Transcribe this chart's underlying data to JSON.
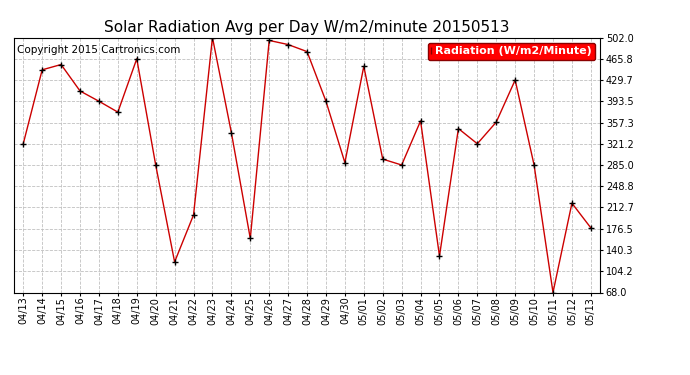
{
  "title": "Solar Radiation Avg per Day W/m2/minute 20150513",
  "copyright": "Copyright 2015 Cartronics.com",
  "legend_label": "Radiation (W/m2/Minute)",
  "dates": [
    "04/13",
    "04/14",
    "04/15",
    "04/16",
    "04/17",
    "04/18",
    "04/19",
    "04/20",
    "04/21",
    "04/22",
    "04/23",
    "04/24",
    "04/25",
    "04/26",
    "04/27",
    "04/28",
    "04/29",
    "04/30",
    "05/01",
    "05/02",
    "05/03",
    "05/04",
    "05/05",
    "05/06",
    "05/07",
    "05/08",
    "05/09",
    "05/10",
    "05/11",
    "05/12",
    "05/13"
  ],
  "values": [
    321.2,
    447.0,
    456.0,
    411.0,
    393.5,
    375.0,
    465.8,
    285.0,
    120.0,
    200.0,
    502.0,
    340.0,
    160.0,
    497.0,
    490.0,
    478.0,
    393.5,
    289.0,
    453.0,
    295.0,
    285.0,
    360.0,
    130.0,
    347.0,
    321.2,
    358.0,
    429.7,
    285.0,
    68.0,
    220.0,
    178.0
  ],
  "line_color": "#cc0000",
  "marker_color": "#000000",
  "background_color": "#ffffff",
  "grid_color": "#c0c0c0",
  "ylim": [
    68.0,
    502.0
  ],
  "yticks": [
    68.0,
    104.2,
    140.3,
    176.5,
    212.7,
    248.8,
    285.0,
    321.2,
    357.3,
    393.5,
    429.7,
    465.8,
    502.0
  ],
  "title_fontsize": 11,
  "legend_fontsize": 8,
  "copyright_fontsize": 7.5
}
